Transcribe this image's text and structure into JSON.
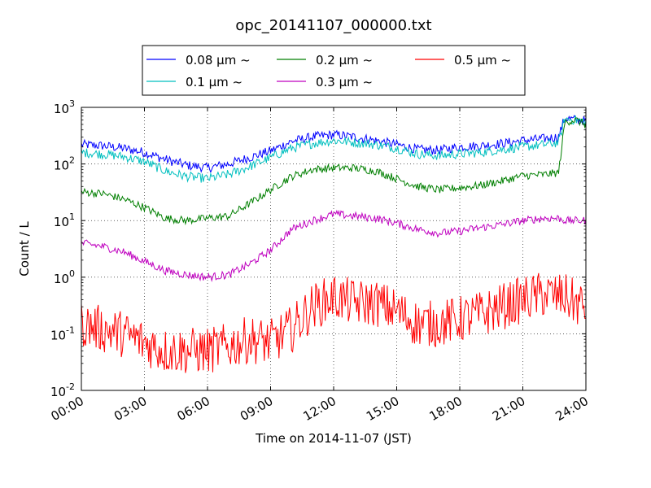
{
  "chart_data": {
    "type": "line",
    "title": "opc_20141107_000000.txt",
    "xlabel": "Time on 2014-11-07 (JST)",
    "ylabel": "Count / L",
    "yscale": "log",
    "xlim": [
      "00:00",
      "24:00"
    ],
    "ylim": [
      0.01,
      1000
    ],
    "x_ticks": [
      "00:00",
      "03:00",
      "06:00",
      "09:00",
      "12:00",
      "15:00",
      "18:00",
      "21:00",
      "24:00"
    ],
    "y_ticks": [
      {
        "base": "10",
        "exp": "-2"
      },
      {
        "base": "10",
        "exp": "-1"
      },
      {
        "base": "10",
        "exp": "0"
      },
      {
        "base": "10",
        "exp": "1"
      },
      {
        "base": "10",
        "exp": "2"
      },
      {
        "base": "10",
        "exp": "3"
      }
    ],
    "grid": true,
    "legend_position": "top-center",
    "x_hours": [
      0,
      1,
      2,
      3,
      4,
      5,
      6,
      7,
      8,
      9,
      10,
      11,
      12,
      13,
      14,
      15,
      16,
      17,
      18,
      19,
      20,
      21,
      22,
      22.7,
      23,
      23.5,
      24
    ],
    "series": [
      {
        "name": "0.08 μm ~",
        "color": "#0000ff",
        "noise": 0.06,
        "values": [
          220,
          210,
          190,
          160,
          120,
          95,
          85,
          100,
          130,
          170,
          250,
          300,
          330,
          300,
          260,
          220,
          180,
          175,
          200,
          210,
          230,
          260,
          280,
          300,
          650,
          600,
          580
        ]
      },
      {
        "name": "0.1 μm ~",
        "color": "#00bfbf",
        "noise": 0.06,
        "values": [
          160,
          150,
          135,
          110,
          75,
          60,
          55,
          65,
          90,
          130,
          190,
          230,
          260,
          240,
          220,
          190,
          150,
          140,
          150,
          160,
          180,
          200,
          220,
          240,
          620,
          600,
          560
        ]
      },
      {
        "name": "0.2 μm ~",
        "color": "#007f00",
        "noise": 0.05,
        "values": [
          32,
          30,
          24,
          17,
          11,
          10,
          11,
          12,
          20,
          35,
          60,
          80,
          85,
          85,
          75,
          55,
          40,
          35,
          38,
          42,
          50,
          62,
          65,
          70,
          550,
          600,
          500
        ]
      },
      {
        "name": "0.3 μm ~",
        "color": "#bf00bf",
        "noise": 0.05,
        "values": [
          4,
          3.5,
          2.8,
          1.9,
          1.3,
          1.1,
          1.0,
          1.1,
          1.7,
          3,
          7,
          10,
          13,
          12,
          11,
          9,
          7,
          6,
          6.5,
          7.5,
          8.5,
          10,
          11,
          11,
          10,
          10,
          10
        ]
      },
      {
        "name": "0.5 μm ~",
        "color": "#ff0000",
        "noise": 0.3,
        "values": [
          0.15,
          0.12,
          0.1,
          0.07,
          0.05,
          0.05,
          0.05,
          0.06,
          0.08,
          0.07,
          0.12,
          0.3,
          0.45,
          0.35,
          0.35,
          0.25,
          0.15,
          0.15,
          0.18,
          0.22,
          0.3,
          0.4,
          0.5,
          0.45,
          0.45,
          0.35,
          0.3
        ]
      }
    ]
  }
}
